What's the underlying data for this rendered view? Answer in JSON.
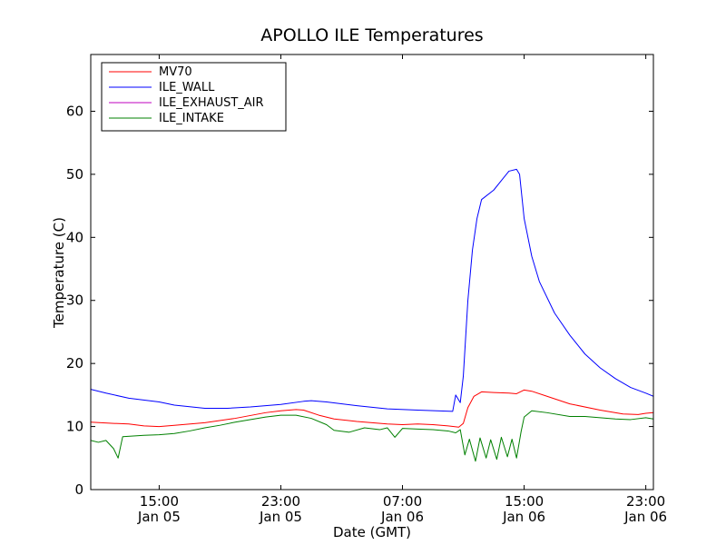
{
  "chart_data": {
    "type": "line",
    "title": "APOLLO ILE Temperatures",
    "xlabel": "Date (GMT)",
    "ylabel": "Temperature (C)",
    "x_unit": "hours since Jan 05 00:00 GMT",
    "xlim": [
      10.5,
      47.5
    ],
    "ylim": [
      0,
      69
    ],
    "yticks": [
      0,
      10,
      20,
      30,
      40,
      50,
      60
    ],
    "xticks": [
      {
        "x": 15,
        "time": "15:00",
        "date": "Jan 05"
      },
      {
        "x": 23,
        "time": "23:00",
        "date": "Jan 05"
      },
      {
        "x": 31,
        "time": "07:00",
        "date": "Jan 06"
      },
      {
        "x": 39,
        "time": "15:00",
        "date": "Jan 06"
      },
      {
        "x": 47,
        "time": "23:00",
        "date": "Jan 06"
      }
    ],
    "legend_position": "top-left",
    "grid": false,
    "series": [
      {
        "name": "MV70",
        "color": "#ff0000",
        "points": [
          [
            10.5,
            10.7
          ],
          [
            12,
            10.5
          ],
          [
            13,
            10.4
          ],
          [
            14,
            10.1
          ],
          [
            15,
            10.0
          ],
          [
            16,
            10.2
          ],
          [
            18,
            10.6
          ],
          [
            20,
            11.3
          ],
          [
            22,
            12.2
          ],
          [
            23,
            12.5
          ],
          [
            24,
            12.7
          ],
          [
            24.5,
            12.6
          ],
          [
            25.5,
            11.8
          ],
          [
            26.5,
            11.2
          ],
          [
            28,
            10.8
          ],
          [
            30,
            10.4
          ],
          [
            31,
            10.3
          ],
          [
            32,
            10.4
          ],
          [
            33,
            10.3
          ],
          [
            34,
            10.1
          ],
          [
            34.7,
            9.9
          ],
          [
            35,
            10.5
          ],
          [
            35.3,
            13.0
          ],
          [
            35.7,
            14.8
          ],
          [
            36.2,
            15.5
          ],
          [
            37,
            15.4
          ],
          [
            38,
            15.3
          ],
          [
            38.5,
            15.2
          ],
          [
            39,
            15.8
          ],
          [
            39.5,
            15.6
          ],
          [
            40.5,
            14.8
          ],
          [
            42,
            13.6
          ],
          [
            44,
            12.6
          ],
          [
            45.5,
            12.0
          ],
          [
            46.5,
            11.9
          ],
          [
            47,
            12.1
          ],
          [
            47.5,
            12.2
          ]
        ]
      },
      {
        "name": "ILE_WALL",
        "color": "#0000ff",
        "points": [
          [
            10.5,
            15.9
          ],
          [
            11.5,
            15.3
          ],
          [
            13,
            14.5
          ],
          [
            15,
            13.9
          ],
          [
            16,
            13.4
          ],
          [
            18,
            12.9
          ],
          [
            19.5,
            12.9
          ],
          [
            21,
            13.1
          ],
          [
            23,
            13.5
          ],
          [
            24.5,
            14.0
          ],
          [
            25,
            14.1
          ],
          [
            26,
            13.9
          ],
          [
            28,
            13.3
          ],
          [
            30,
            12.8
          ],
          [
            32,
            12.6
          ],
          [
            34.3,
            12.4
          ],
          [
            34.5,
            15.0
          ],
          [
            34.8,
            13.8
          ],
          [
            35,
            18.0
          ],
          [
            35.3,
            30.0
          ],
          [
            35.6,
            38.0
          ],
          [
            35.9,
            43.0
          ],
          [
            36.2,
            46.0
          ],
          [
            37,
            47.5
          ],
          [
            37.5,
            49.0
          ],
          [
            38,
            50.5
          ],
          [
            38.5,
            50.8
          ],
          [
            38.7,
            50.0
          ],
          [
            39,
            43.0
          ],
          [
            39.5,
            37.0
          ],
          [
            40,
            33.0
          ],
          [
            41,
            28.0
          ],
          [
            42,
            24.5
          ],
          [
            43,
            21.5
          ],
          [
            44,
            19.3
          ],
          [
            45,
            17.6
          ],
          [
            46,
            16.2
          ],
          [
            47,
            15.3
          ],
          [
            47.5,
            14.8
          ]
        ]
      },
      {
        "name": "ILE_EXHAUST_AIR",
        "color": "#bf00bf",
        "points": []
      },
      {
        "name": "ILE_INTAKE",
        "color": "#008000",
        "points": [
          [
            10.5,
            7.8
          ],
          [
            11,
            7.5
          ],
          [
            11.5,
            7.8
          ],
          [
            12,
            6.5
          ],
          [
            12.3,
            5.0
          ],
          [
            12.6,
            8.4
          ],
          [
            14,
            8.6
          ],
          [
            15,
            8.7
          ],
          [
            16,
            8.9
          ],
          [
            17,
            9.3
          ],
          [
            18,
            9.8
          ],
          [
            19,
            10.2
          ],
          [
            20,
            10.7
          ],
          [
            22,
            11.5
          ],
          [
            23,
            11.8
          ],
          [
            24,
            11.8
          ],
          [
            25,
            11.3
          ],
          [
            26,
            10.3
          ],
          [
            26.5,
            9.4
          ],
          [
            27.5,
            9.1
          ],
          [
            28.5,
            9.8
          ],
          [
            29.5,
            9.5
          ],
          [
            30,
            9.8
          ],
          [
            30.5,
            8.3
          ],
          [
            31,
            9.7
          ],
          [
            32,
            9.6
          ],
          [
            33,
            9.5
          ],
          [
            34,
            9.3
          ],
          [
            34.5,
            9.0
          ],
          [
            34.8,
            9.5
          ],
          [
            35.1,
            5.5
          ],
          [
            35.4,
            8.0
          ],
          [
            35.8,
            4.5
          ],
          [
            36.1,
            8.2
          ],
          [
            36.5,
            5.0
          ],
          [
            36.8,
            7.9
          ],
          [
            37.2,
            4.8
          ],
          [
            37.5,
            8.3
          ],
          [
            37.9,
            5.2
          ],
          [
            38.2,
            8.0
          ],
          [
            38.5,
            5.0
          ],
          [
            38.8,
            9.2
          ],
          [
            39,
            11.5
          ],
          [
            39.5,
            12.5
          ],
          [
            40.5,
            12.2
          ],
          [
            42,
            11.6
          ],
          [
            43,
            11.6
          ],
          [
            44,
            11.4
          ],
          [
            45,
            11.2
          ],
          [
            46,
            11.1
          ],
          [
            47,
            11.4
          ],
          [
            47.5,
            11.2
          ]
        ]
      }
    ]
  }
}
